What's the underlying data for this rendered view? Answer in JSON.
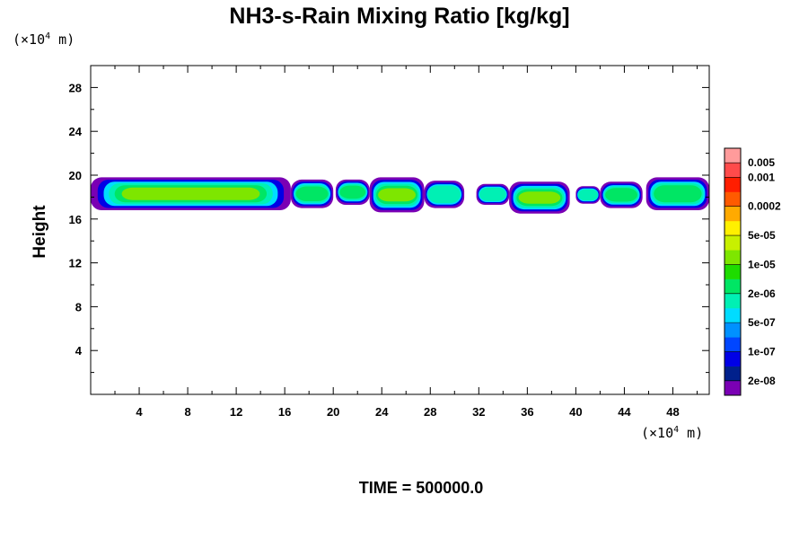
{
  "chart_data": {
    "type": "heatmap",
    "title": "NH3-s-Rain Mixing Ratio [kg/kg]",
    "ylabel": "Height",
    "x_unit_prefix": "(×10",
    "x_unit_exp": "4",
    "x_unit_suffix": " m)",
    "y_unit_prefix": "(×10",
    "y_unit_exp": "4",
    "y_unit_suffix": " m)",
    "xlim": [
      0,
      51
    ],
    "ylim": [
      0,
      30
    ],
    "x_ticks": [
      4,
      8,
      12,
      16,
      20,
      24,
      28,
      32,
      36,
      40,
      44,
      48
    ],
    "y_ticks": [
      4,
      8,
      12,
      16,
      20,
      24,
      28
    ],
    "time_label": "TIME = 500000.0",
    "colorbar": {
      "colors": [
        "#7a00b4",
        "#00208c",
        "#0000e6",
        "#0046ff",
        "#0091ff",
        "#00dcff",
        "#00f0b4",
        "#00e664",
        "#1edc00",
        "#7ee600",
        "#c8f000",
        "#fff000",
        "#ffaa00",
        "#ff5a00",
        "#ff1e00",
        "#ff4b4b",
        "#ff9b9b"
      ],
      "labels": [
        "2e-08",
        "1e-07",
        "5e-07",
        "2e-06",
        "1e-05",
        "5e-05",
        "0.0002",
        "0.001",
        "0.005"
      ],
      "label_after_index": [
        1,
        3,
        5,
        7,
        9,
        11,
        13,
        15,
        16
      ]
    },
    "cloud_bands": [
      {
        "x0": 0.0,
        "x1": 16.5,
        "y0": 16.8,
        "y1": 19.8,
        "core": 3
      },
      {
        "x0": 16.5,
        "x1": 20.0,
        "y0": 17.0,
        "y1": 19.6,
        "core": 2
      },
      {
        "x0": 20.2,
        "x1": 23.0,
        "y0": 17.3,
        "y1": 19.6,
        "core": 2
      },
      {
        "x0": 23.0,
        "x1": 27.5,
        "y0": 16.6,
        "y1": 19.8,
        "core": 3
      },
      {
        "x0": 27.5,
        "x1": 30.8,
        "y0": 17.0,
        "y1": 19.5,
        "core": 1
      },
      {
        "x0": 31.8,
        "x1": 34.5,
        "y0": 17.3,
        "y1": 19.2,
        "core": 1
      },
      {
        "x0": 34.5,
        "x1": 39.5,
        "y0": 16.5,
        "y1": 19.4,
        "core": 3
      },
      {
        "x0": 40.0,
        "x1": 42.0,
        "y0": 17.4,
        "y1": 19.0,
        "core": 1
      },
      {
        "x0": 42.0,
        "x1": 45.5,
        "y0": 17.0,
        "y1": 19.4,
        "core": 2
      },
      {
        "x0": 45.8,
        "x1": 51.0,
        "y0": 16.8,
        "y1": 19.8,
        "core": 2
      }
    ]
  }
}
